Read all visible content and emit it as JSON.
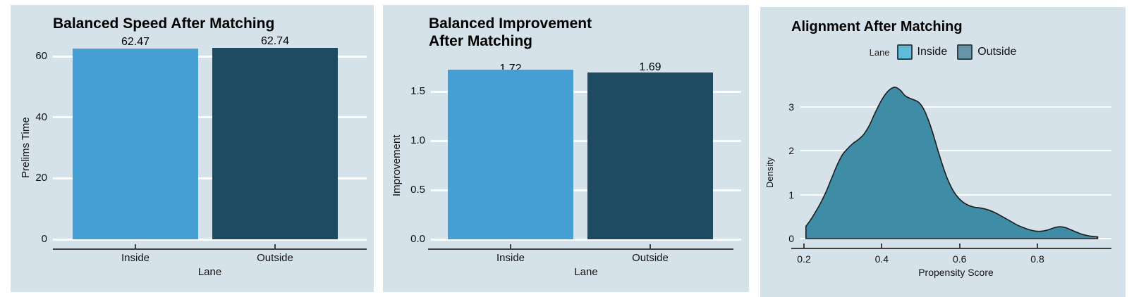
{
  "colors": {
    "page_background": "#ffffff",
    "panel_background": "#d6e2e9",
    "gridline": "#ffffff",
    "axis_line": "#404040",
    "bar_inside": "#459fd4",
    "bar_outside": "#1e4b61",
    "density_fill": "#3787a3",
    "density_stroke": "#1c1c1c",
    "legend_inside_swatch": "#5fbdda",
    "legend_outside_swatch": "#6795a8"
  },
  "chart_data": [
    {
      "id": "speed",
      "type": "bar",
      "title": "Balanced Speed After Matching",
      "xlabel": "Lane",
      "ylabel": "Prelims Time",
      "categories": [
        "Inside",
        "Outside"
      ],
      "values": [
        62.47,
        62.74
      ],
      "value_labels": [
        "62.47",
        "62.74"
      ],
      "bar_colors": [
        "#459fd4",
        "#1e4b61"
      ],
      "ytick_values": [
        0,
        20,
        40,
        60
      ],
      "ytick_labels": [
        "0",
        "20",
        "40",
        "60"
      ],
      "ylim": [
        0,
        65
      ],
      "grid": "horizontal-white",
      "legend_position": "none"
    },
    {
      "id": "improvement",
      "type": "bar",
      "title": "Balanced Improvement\nAfter Matching",
      "xlabel": "Lane",
      "ylabel": "Improvement",
      "categories": [
        "Inside",
        "Outside"
      ],
      "values": [
        1.72,
        1.69
      ],
      "value_labels": [
        "1.72",
        "1.69"
      ],
      "bar_colors": [
        "#459fd4",
        "#1e4b61"
      ],
      "ytick_values": [
        0,
        0.5,
        1.0,
        1.5
      ],
      "ytick_labels": [
        "0.0",
        "0.5",
        "1.0",
        "1.5"
      ],
      "ylim": [
        0,
        1.78
      ],
      "grid": "horizontal-white",
      "legend_position": "none"
    },
    {
      "id": "alignment",
      "type": "area",
      "title": "Alignment After Matching",
      "xlabel": "Propensity Score",
      "ylabel": "Density",
      "legend": {
        "title": "Lane",
        "position": "top",
        "items": [
          {
            "label": "Inside",
            "color": "#5fbdda"
          },
          {
            "label": "Outside",
            "color": "#6795a8"
          }
        ]
      },
      "xtick_values": [
        0.2,
        0.4,
        0.6,
        0.8
      ],
      "xtick_labels": [
        "0.2",
        "0.4",
        "0.6",
        "0.8"
      ],
      "ytick_values": [
        0,
        1,
        2,
        3
      ],
      "ytick_labels": [
        "0",
        "1",
        "2",
        "3"
      ],
      "xlim": [
        0.2,
        0.96
      ],
      "ylim": [
        0,
        3.6
      ],
      "grid": "horizontal-white",
      "series_note": "overlapping Inside/Outside propensity densities appear as one teal curve",
      "points": [
        [
          0.205,
          0.28
        ],
        [
          0.215,
          0.4
        ],
        [
          0.228,
          0.58
        ],
        [
          0.242,
          0.8
        ],
        [
          0.256,
          1.05
        ],
        [
          0.27,
          1.35
        ],
        [
          0.284,
          1.65
        ],
        [
          0.298,
          1.9
        ],
        [
          0.312,
          2.05
        ],
        [
          0.326,
          2.17
        ],
        [
          0.34,
          2.26
        ],
        [
          0.354,
          2.38
        ],
        [
          0.368,
          2.58
        ],
        [
          0.382,
          2.85
        ],
        [
          0.396,
          3.1
        ],
        [
          0.41,
          3.3
        ],
        [
          0.424,
          3.42
        ],
        [
          0.436,
          3.45
        ],
        [
          0.448,
          3.38
        ],
        [
          0.46,
          3.26
        ],
        [
          0.472,
          3.2
        ],
        [
          0.484,
          3.16
        ],
        [
          0.496,
          3.1
        ],
        [
          0.508,
          2.95
        ],
        [
          0.52,
          2.7
        ],
        [
          0.532,
          2.38
        ],
        [
          0.544,
          2.02
        ],
        [
          0.556,
          1.68
        ],
        [
          0.568,
          1.38
        ],
        [
          0.58,
          1.15
        ],
        [
          0.592,
          0.98
        ],
        [
          0.606,
          0.85
        ],
        [
          0.62,
          0.77
        ],
        [
          0.636,
          0.72
        ],
        [
          0.652,
          0.7
        ],
        [
          0.668,
          0.67
        ],
        [
          0.684,
          0.62
        ],
        [
          0.7,
          0.55
        ],
        [
          0.716,
          0.47
        ],
        [
          0.732,
          0.39
        ],
        [
          0.748,
          0.31
        ],
        [
          0.764,
          0.25
        ],
        [
          0.78,
          0.2
        ],
        [
          0.796,
          0.17
        ],
        [
          0.812,
          0.17
        ],
        [
          0.828,
          0.2
        ],
        [
          0.844,
          0.25
        ],
        [
          0.858,
          0.27
        ],
        [
          0.872,
          0.25
        ],
        [
          0.886,
          0.2
        ],
        [
          0.9,
          0.15
        ],
        [
          0.914,
          0.1
        ],
        [
          0.928,
          0.07
        ],
        [
          0.942,
          0.05
        ],
        [
          0.955,
          0.04
        ]
      ]
    }
  ]
}
